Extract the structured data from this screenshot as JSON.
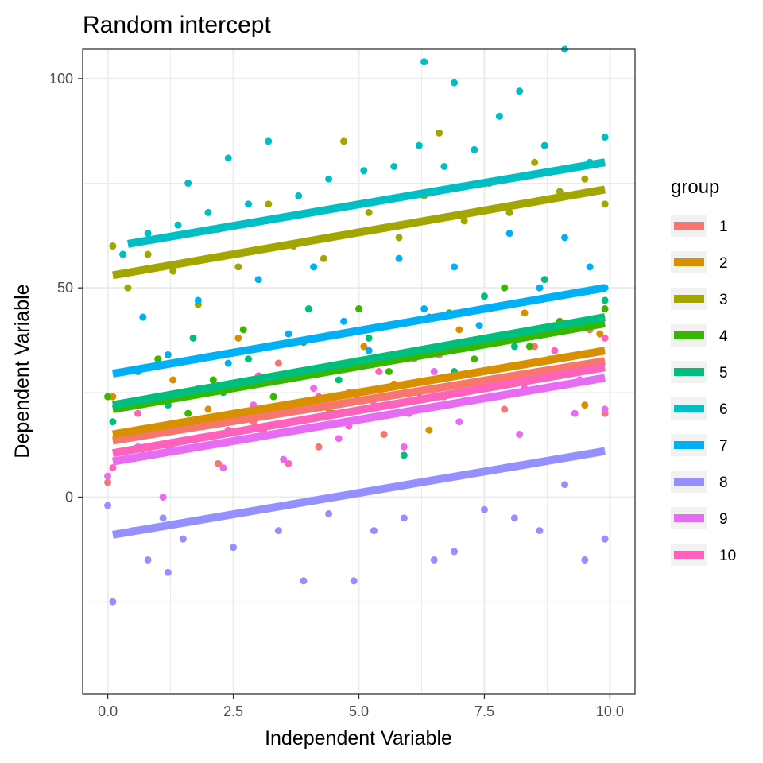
{
  "chart_data": {
    "type": "scatter",
    "title": "Random intercept",
    "xlabel": "Independent Variable",
    "ylabel": "Dependent Variable",
    "xlim": [
      -0.5,
      10.5
    ],
    "ylim": [
      -47,
      107
    ],
    "x_ticks": [
      "0.0",
      "2.5",
      "5.0",
      "7.5",
      "10.0"
    ],
    "x_tick_values": [
      0,
      2.5,
      5,
      7.5,
      10
    ],
    "y_ticks": [
      "0",
      "50",
      "100"
    ],
    "y_tick_values": [
      0,
      50,
      100
    ],
    "grid": true,
    "legend": {
      "title": "group",
      "position": "right"
    },
    "series": [
      {
        "name": "1",
        "color": "#F8766D",
        "fit": {
          "x": [
            0.1,
            9.9
          ],
          "y": [
            13.5,
            32.5
          ]
        },
        "points": [
          [
            0.0,
            3.5
          ],
          [
            0.8,
            12
          ],
          [
            1.5,
            24
          ],
          [
            2.2,
            8
          ],
          [
            2.9,
            18
          ],
          [
            3.4,
            32
          ],
          [
            4.2,
            12
          ],
          [
            4.8,
            25
          ],
          [
            5.5,
            15
          ],
          [
            6.1,
            33
          ],
          [
            6.7,
            24
          ],
          [
            7.2,
            37
          ],
          [
            7.9,
            21
          ],
          [
            8.5,
            36
          ],
          [
            9.1,
            27
          ],
          [
            9.6,
            40
          ],
          [
            9.9,
            20
          ]
        ]
      },
      {
        "name": "2",
        "color": "#D89000",
        "fit": {
          "x": [
            0.1,
            9.9
          ],
          "y": [
            15.0,
            35.0
          ]
        },
        "points": [
          [
            0.1,
            24
          ],
          [
            0.7,
            10
          ],
          [
            1.3,
            28
          ],
          [
            2.0,
            21
          ],
          [
            2.6,
            38
          ],
          [
            3.1,
            16
          ],
          [
            3.8,
            30
          ],
          [
            4.4,
            21
          ],
          [
            5.1,
            36
          ],
          [
            5.7,
            27
          ],
          [
            6.4,
            16
          ],
          [
            7.0,
            40
          ],
          [
            7.6,
            28
          ],
          [
            8.3,
            44
          ],
          [
            8.9,
            30
          ],
          [
            9.5,
            22
          ],
          [
            9.8,
            39
          ]
        ]
      },
      {
        "name": "3",
        "color": "#A3A500",
        "fit": {
          "x": [
            0.1,
            9.9
          ],
          "y": [
            53.0,
            73.5
          ]
        },
        "points": [
          [
            0.1,
            60
          ],
          [
            0.4,
            50
          ],
          [
            0.8,
            58
          ],
          [
            1.3,
            54
          ],
          [
            1.8,
            46
          ],
          [
            2.2,
            64
          ],
          [
            2.6,
            55
          ],
          [
            3.2,
            70
          ],
          [
            3.7,
            60
          ],
          [
            4.3,
            57
          ],
          [
            4.7,
            85
          ],
          [
            5.2,
            68
          ],
          [
            5.8,
            62
          ],
          [
            6.3,
            72
          ],
          [
            6.6,
            87
          ],
          [
            7.1,
            66
          ],
          [
            7.6,
            75
          ],
          [
            8.0,
            68
          ],
          [
            8.5,
            80
          ],
          [
            9.0,
            73
          ],
          [
            9.5,
            76
          ],
          [
            9.9,
            70
          ]
        ]
      },
      {
        "name": "4",
        "color": "#39B600",
        "fit": {
          "x": [
            0.1,
            9.9
          ],
          "y": [
            21.0,
            41.5
          ]
        },
        "points": [
          [
            0.0,
            24
          ],
          [
            0.5,
            15
          ],
          [
            1.0,
            33
          ],
          [
            1.6,
            20
          ],
          [
            2.1,
            28
          ],
          [
            2.7,
            40
          ],
          [
            3.3,
            24
          ],
          [
            3.9,
            37
          ],
          [
            4.5,
            20
          ],
          [
            5.0,
            45
          ],
          [
            5.6,
            30
          ],
          [
            6.2,
            25
          ],
          [
            6.8,
            44
          ],
          [
            7.3,
            33
          ],
          [
            7.9,
            50
          ],
          [
            8.4,
            36
          ],
          [
            9.0,
            42
          ],
          [
            9.6,
            31
          ],
          [
            9.9,
            45
          ]
        ]
      },
      {
        "name": "5",
        "color": "#00BF7D",
        "fit": {
          "x": [
            0.1,
            9.9
          ],
          "y": [
            22.0,
            43.0
          ]
        },
        "points": [
          [
            0.1,
            18
          ],
          [
            0.6,
            30
          ],
          [
            1.2,
            22
          ],
          [
            1.7,
            38
          ],
          [
            2.3,
            25
          ],
          [
            2.8,
            33
          ],
          [
            3.4,
            20
          ],
          [
            4.0,
            45
          ],
          [
            4.6,
            28
          ],
          [
            5.2,
            38
          ],
          [
            5.9,
            10
          ],
          [
            6.4,
            43
          ],
          [
            6.9,
            30
          ],
          [
            7.5,
            48
          ],
          [
            8.1,
            36
          ],
          [
            8.7,
            52
          ],
          [
            9.2,
            40
          ],
          [
            9.9,
            47
          ]
        ]
      },
      {
        "name": "6",
        "color": "#00BFC4",
        "fit": {
          "x": [
            0.4,
            9.9
          ],
          "y": [
            60.5,
            80.0
          ]
        },
        "points": [
          [
            0.3,
            58
          ],
          [
            0.8,
            63
          ],
          [
            1.4,
            65
          ],
          [
            1.6,
            75
          ],
          [
            2.0,
            68
          ],
          [
            2.4,
            81
          ],
          [
            2.8,
            70
          ],
          [
            3.2,
            85
          ],
          [
            3.8,
            72
          ],
          [
            4.4,
            76
          ],
          [
            5.1,
            78
          ],
          [
            5.7,
            79
          ],
          [
            6.2,
            84
          ],
          [
            6.3,
            104
          ],
          [
            6.7,
            79
          ],
          [
            6.9,
            99
          ],
          [
            7.3,
            83
          ],
          [
            7.8,
            91
          ],
          [
            8.2,
            97
          ],
          [
            8.7,
            84
          ],
          [
            9.1,
            107
          ],
          [
            9.6,
            80
          ],
          [
            9.9,
            86
          ]
        ]
      },
      {
        "name": "7",
        "color": "#00B0F6",
        "fit": {
          "x": [
            0.1,
            9.9
          ],
          "y": [
            29.5,
            50.0
          ]
        },
        "points": [
          [
            0.2,
            22
          ],
          [
            0.7,
            43
          ],
          [
            1.2,
            34
          ],
          [
            1.8,
            47
          ],
          [
            2.4,
            32
          ],
          [
            3.0,
            52
          ],
          [
            3.6,
            39
          ],
          [
            4.1,
            55
          ],
          [
            4.7,
            42
          ],
          [
            5.2,
            35
          ],
          [
            5.8,
            57
          ],
          [
            6.3,
            45
          ],
          [
            6.9,
            55
          ],
          [
            7.4,
            41
          ],
          [
            8.0,
            63
          ],
          [
            8.6,
            50
          ],
          [
            9.1,
            62
          ],
          [
            9.6,
            55
          ],
          [
            9.9,
            50
          ]
        ]
      },
      {
        "name": "8",
        "color": "#9590FF",
        "fit": {
          "x": [
            0.1,
            9.9
          ],
          "y": [
            -9.0,
            11.0
          ]
        },
        "points": [
          [
            0.0,
            -2
          ],
          [
            0.1,
            -25
          ],
          [
            0.5,
            -8
          ],
          [
            0.8,
            -15
          ],
          [
            1.1,
            -5
          ],
          [
            1.2,
            -18
          ],
          [
            1.5,
            -10
          ],
          [
            2.0,
            -5
          ],
          [
            2.5,
            -12
          ],
          [
            3.0,
            -3
          ],
          [
            3.4,
            -8
          ],
          [
            3.9,
            -20
          ],
          [
            4.4,
            -4
          ],
          [
            4.9,
            -20
          ],
          [
            5.3,
            -8
          ],
          [
            5.9,
            -5
          ],
          [
            6.5,
            -15
          ],
          [
            6.9,
            -13
          ],
          [
            7.5,
            -3
          ],
          [
            8.1,
            -5
          ],
          [
            8.6,
            -8
          ],
          [
            9.1,
            3
          ],
          [
            9.5,
            -15
          ],
          [
            9.9,
            -10
          ]
        ]
      },
      {
        "name": "9",
        "color": "#E76BF3",
        "fit": {
          "x": [
            0.1,
            9.9
          ],
          "y": [
            8.5,
            28.5
          ]
        },
        "points": [
          [
            0.0,
            5
          ],
          [
            0.6,
            12
          ],
          [
            1.1,
            0
          ],
          [
            1.7,
            18
          ],
          [
            2.3,
            7
          ],
          [
            2.9,
            22
          ],
          [
            3.5,
            9
          ],
          [
            4.1,
            26
          ],
          [
            4.6,
            14
          ],
          [
            5.3,
            22
          ],
          [
            5.9,
            12
          ],
          [
            6.5,
            30
          ],
          [
            7.0,
            18
          ],
          [
            7.6,
            27
          ],
          [
            8.2,
            15
          ],
          [
            8.8,
            33
          ],
          [
            9.3,
            20
          ],
          [
            9.9,
            21
          ]
        ]
      },
      {
        "name": "10",
        "color": "#FF62BC",
        "fit": {
          "x": [
            0.1,
            9.9
          ],
          "y": [
            10.5,
            31.0
          ]
        },
        "points": [
          [
            0.1,
            7
          ],
          [
            0.6,
            20
          ],
          [
            1.2,
            12
          ],
          [
            1.8,
            26
          ],
          [
            2.4,
            16
          ],
          [
            3.0,
            29
          ],
          [
            3.6,
            8
          ],
          [
            4.2,
            24
          ],
          [
            4.8,
            17
          ],
          [
            5.4,
            30
          ],
          [
            6.0,
            20
          ],
          [
            6.6,
            34
          ],
          [
            7.1,
            23
          ],
          [
            7.7,
            38
          ],
          [
            8.3,
            26
          ],
          [
            8.9,
            35
          ],
          [
            9.4,
            28
          ],
          [
            9.9,
            38
          ]
        ]
      }
    ]
  }
}
